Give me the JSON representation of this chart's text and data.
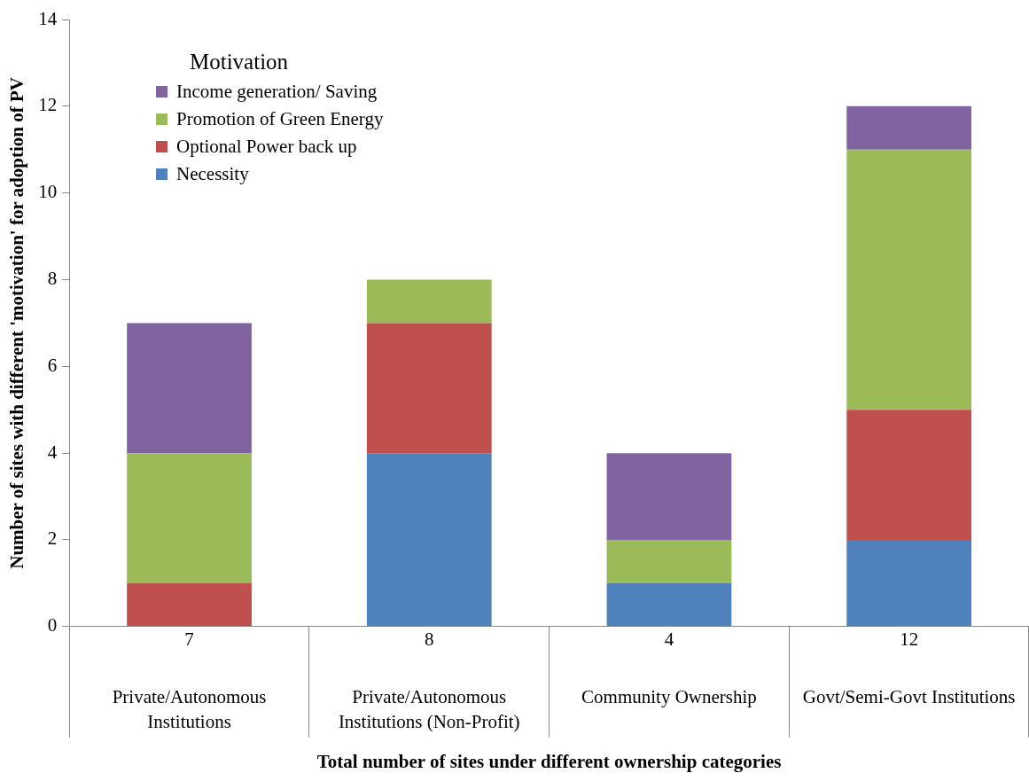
{
  "chart_data": {
    "type": "bar",
    "stacked": true,
    "xlabel": "Total number of sites under different ownership categories",
    "ylabel": "Number of sites with different 'motivation' for adoption of PV",
    "legend_title": "Motivation",
    "legend": "top left",
    "categories": [
      "Private/Autonomous Institutions",
      "Private/Autonomous Institutions (Non-Profit)",
      "Community Ownership",
      "Govt/Semi-Govt Institutions"
    ],
    "totals": [
      "7",
      "8",
      "4",
      "12"
    ],
    "series": [
      {
        "name": "Necessity",
        "color": "#4f81bd",
        "values": [
          0,
          4,
          1,
          2
        ]
      },
      {
        "name": "Optional Power back up",
        "color": "#c0504d",
        "values": [
          1,
          3,
          0,
          3
        ]
      },
      {
        "name": "Promotion of Green Energy",
        "color": "#9bbb59",
        "values": [
          3,
          1,
          1,
          6
        ]
      },
      {
        "name": "Income generation/ Saving",
        "color": "#8064a2",
        "values": [
          3,
          0,
          2,
          1
        ]
      }
    ],
    "ylim": [
      0,
      14
    ],
    "yticks": [
      0,
      2,
      4,
      6,
      8,
      10,
      12,
      14
    ],
    "grid": false
  }
}
